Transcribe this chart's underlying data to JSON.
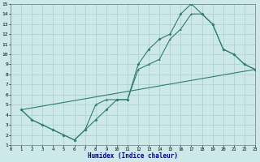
{
  "xlabel": "Humidex (Indice chaleur)",
  "xlim": [
    0,
    23
  ],
  "ylim": [
    1,
    15
  ],
  "xticks": [
    0,
    1,
    2,
    3,
    4,
    5,
    6,
    7,
    8,
    9,
    10,
    11,
    12,
    13,
    14,
    15,
    16,
    17,
    18,
    19,
    20,
    21,
    22,
    23
  ],
  "yticks": [
    1,
    2,
    3,
    4,
    5,
    6,
    7,
    8,
    9,
    10,
    11,
    12,
    13,
    14,
    15
  ],
  "bg_color": "#cce8e8",
  "line_color": "#2e7d6e",
  "grid_color": "#aacece",
  "series1_x": [
    1,
    2,
    3,
    4,
    5,
    6,
    7,
    8,
    9,
    10,
    11,
    12,
    13,
    14,
    15,
    16,
    17,
    18,
    19,
    20,
    21,
    22,
    23
  ],
  "series1_y": [
    4.5,
    3.5,
    3.0,
    2.5,
    2.0,
    1.5,
    2.5,
    3.5,
    4.5,
    5.5,
    5.5,
    9.0,
    10.5,
    11.5,
    12.0,
    14.0,
    15.0,
    14.0,
    13.0,
    10.5,
    10.0,
    9.0,
    8.5
  ],
  "series2_x": [
    1,
    2,
    3,
    4,
    5,
    6,
    7,
    8,
    9,
    10,
    11,
    12,
    13,
    14,
    15,
    16,
    17,
    18,
    19,
    20,
    21,
    22,
    23
  ],
  "series2_y": [
    4.5,
    3.5,
    3.0,
    2.5,
    2.0,
    1.5,
    2.5,
    5.0,
    5.5,
    5.5,
    5.5,
    8.5,
    9.0,
    9.5,
    11.5,
    12.5,
    14.0,
    14.0,
    13.0,
    10.5,
    10.0,
    9.0,
    8.5
  ],
  "series3_x": [
    1,
    23
  ],
  "series3_y": [
    4.5,
    8.5
  ]
}
